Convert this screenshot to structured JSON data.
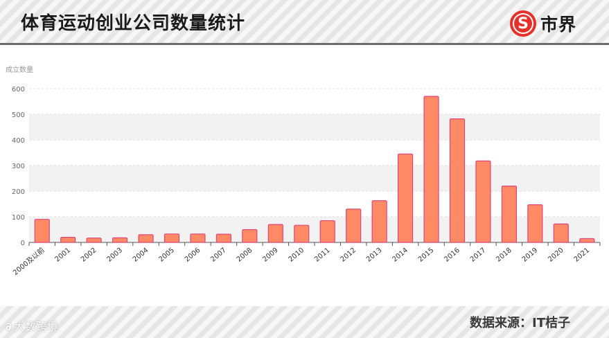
{
  "header": {
    "title": "体育运动创业公司数量统计",
    "logo_text": "市界",
    "logo_symbol": "S"
  },
  "footer": {
    "source": "数据来源：IT桔子",
    "watermark": "大数跨境",
    "watermark_icon": "∂"
  },
  "colors": {
    "bar_fill": "#ff8a65",
    "bar_stroke": "#e0457a",
    "band_fill": "#f2f2f2",
    "axis": "#555555",
    "grid": "#dddddd",
    "brand": "#e8302a"
  },
  "chart_data": {
    "type": "bar",
    "ylabel": "成立数量",
    "xlabel": "",
    "ylim": [
      0,
      600
    ],
    "yticks": [
      0,
      100,
      200,
      300,
      400,
      500,
      600
    ],
    "grid": true,
    "categories": [
      "2000及以前",
      "2001",
      "2002",
      "2003",
      "2004",
      "2005",
      "2006",
      "2007",
      "2008",
      "2009",
      "2010",
      "2011",
      "2012",
      "2013",
      "2014",
      "2015",
      "2016",
      "2017",
      "2018",
      "2019",
      "2020",
      "2021"
    ],
    "values": [
      90,
      20,
      17,
      18,
      30,
      33,
      33,
      32,
      50,
      70,
      67,
      85,
      130,
      163,
      345,
      570,
      482,
      318,
      220,
      147,
      72,
      15
    ]
  }
}
